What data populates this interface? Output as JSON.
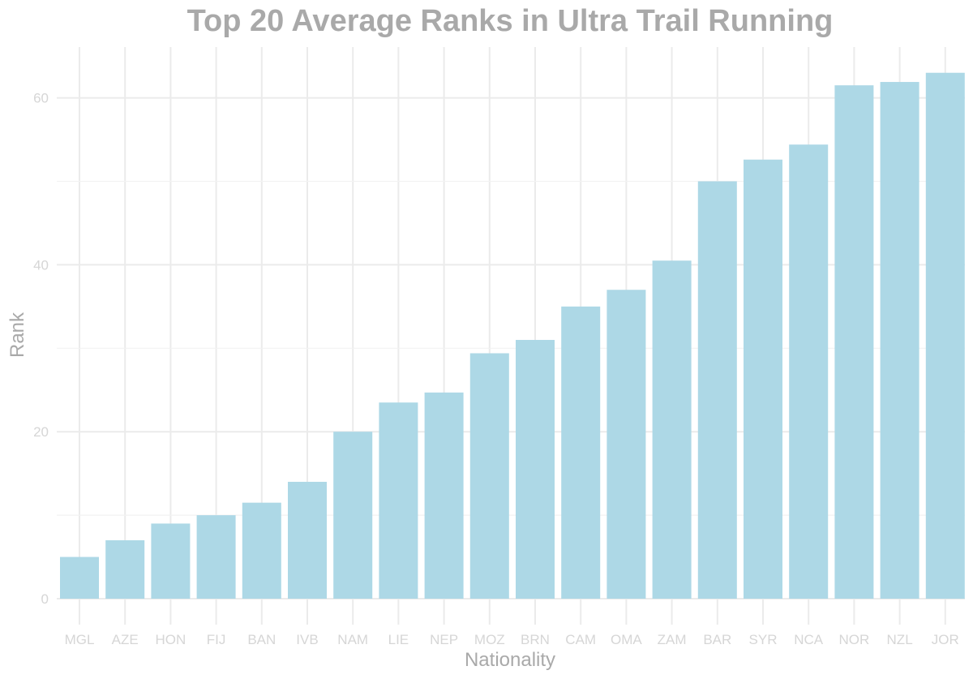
{
  "chart_data": {
    "type": "bar",
    "title": "Top 20 Average Ranks in Ultra Trail Running",
    "xlabel": "Nationality",
    "ylabel": "Rank",
    "categories": [
      "MGL",
      "AZE",
      "HON",
      "FIJ",
      "BAN",
      "IVB",
      "NAM",
      "LIE",
      "NEP",
      "MOZ",
      "BRN",
      "CAM",
      "OMA",
      "ZAM",
      "BAR",
      "SYR",
      "NCA",
      "NOR",
      "NZL",
      "JOR"
    ],
    "values": [
      5.0,
      7.0,
      9.0,
      10.0,
      11.5,
      14.0,
      20.0,
      23.5,
      24.7,
      29.4,
      31.0,
      35.0,
      37.0,
      40.5,
      50.0,
      52.6,
      54.4,
      61.5,
      61.9,
      63.0
    ],
    "ylim": [
      0,
      66
    ],
    "yticks": [
      0,
      20,
      40,
      60
    ],
    "grid": true,
    "bar_color": "#add8e6",
    "grid_color": "#ebebeb",
    "title_color": "#a9a9a9",
    "tick_color": "#d6d6d6"
  }
}
